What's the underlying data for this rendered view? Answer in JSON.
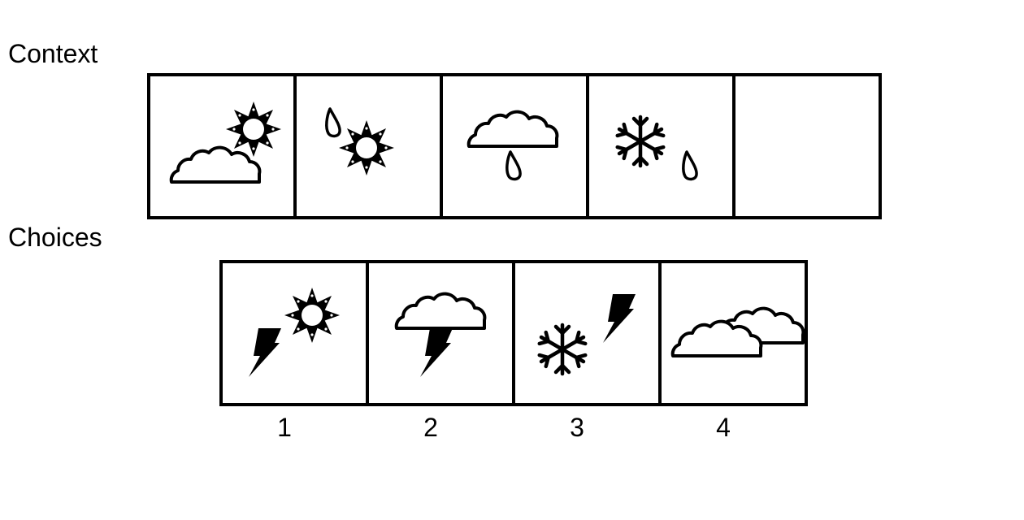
{
  "labels": {
    "context": "Context",
    "choices": "Choices"
  },
  "context": [
    {
      "icons": [
        "cloud-icon",
        "sun-icon"
      ]
    },
    {
      "icons": [
        "raindrop-icon",
        "sun-icon"
      ]
    },
    {
      "icons": [
        "cloud-icon",
        "raindrop-icon"
      ]
    },
    {
      "icons": [
        "snowflake-icon",
        "raindrop-icon"
      ]
    },
    {
      "icons": []
    }
  ],
  "choices": [
    {
      "number": "1",
      "icons": [
        "lightning-icon",
        "sun-icon"
      ]
    },
    {
      "number": "2",
      "icons": [
        "cloud-icon",
        "lightning-icon"
      ]
    },
    {
      "number": "3",
      "icons": [
        "snowflake-icon",
        "lightning-icon"
      ]
    },
    {
      "number": "4",
      "icons": [
        "cloud-icon",
        "cloud-icon"
      ]
    }
  ],
  "colors": {
    "ink": "#000000",
    "background": "#ffffff"
  }
}
